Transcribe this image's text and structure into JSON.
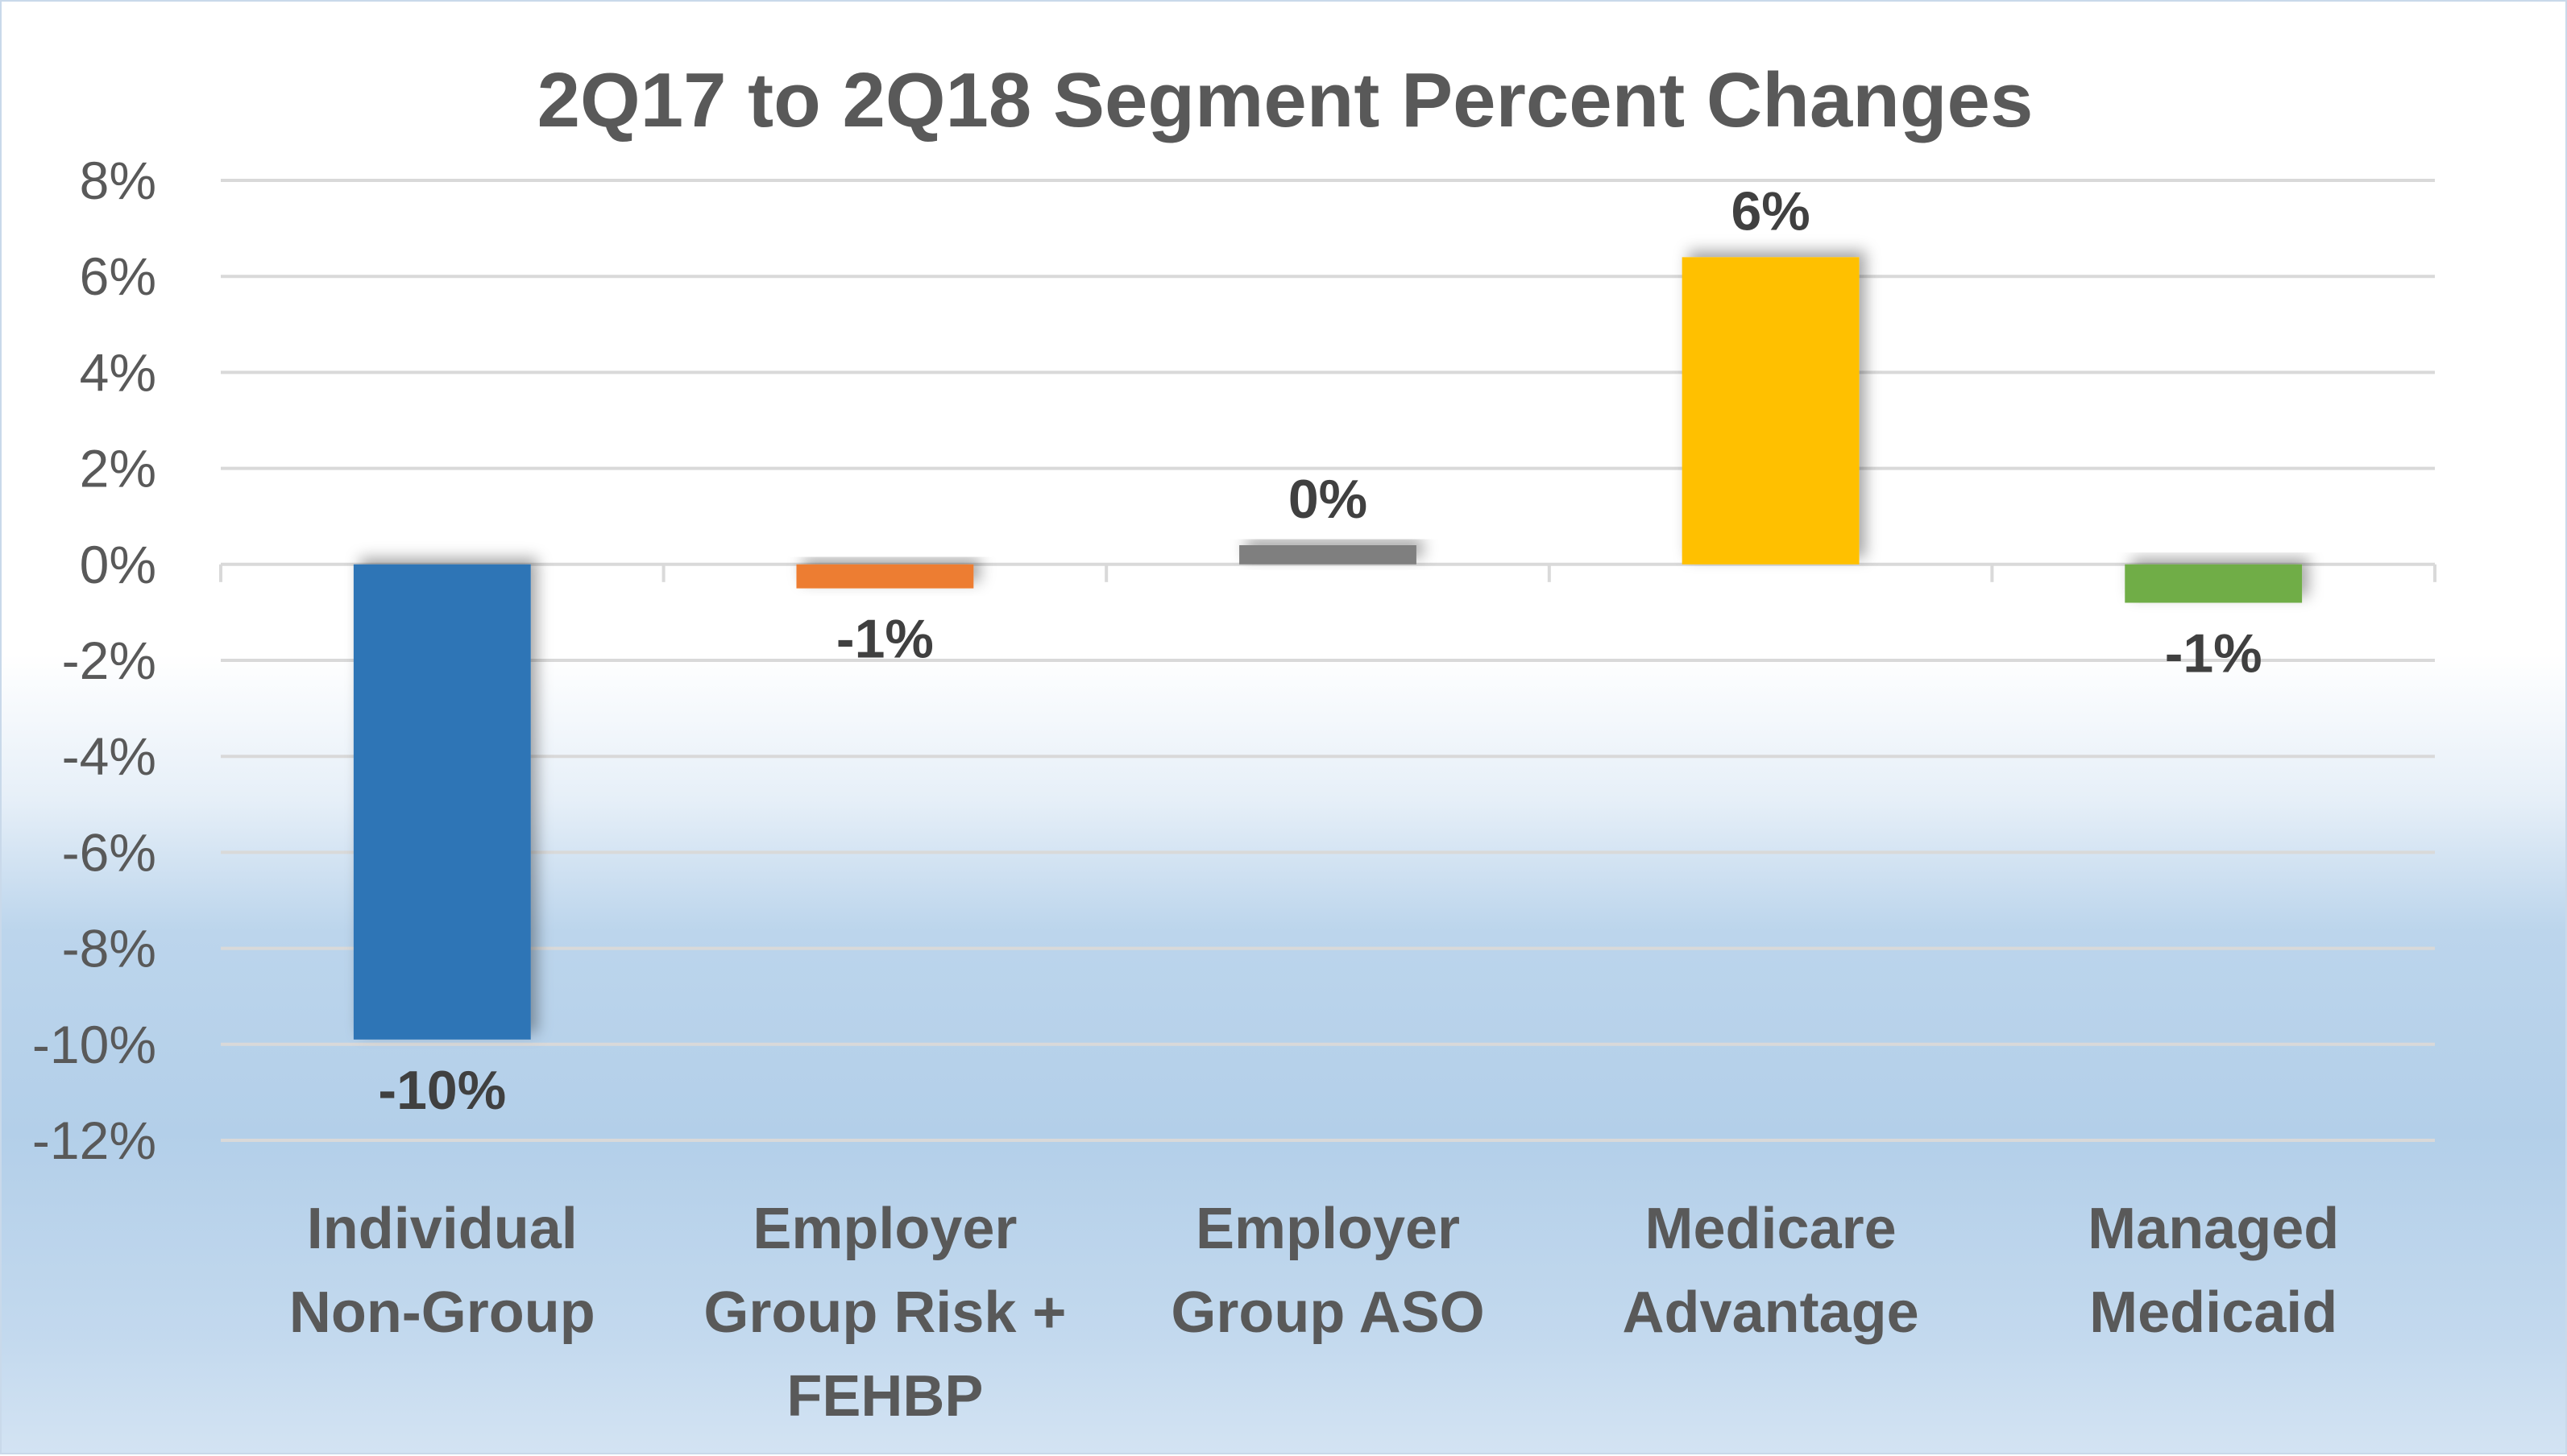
{
  "chart_data": {
    "type": "bar",
    "title": "2Q17 to 2Q18 Segment Percent Changes",
    "xlabel": "",
    "ylabel": "",
    "ylim": [
      -12,
      8
    ],
    "ytick_step": 2,
    "ytick_labels": [
      "8%",
      "6%",
      "4%",
      "2%",
      "0%",
      "-2%",
      "-4%",
      "-6%",
      "-8%",
      "-10%",
      "-12%"
    ],
    "categories": [
      [
        "Individual",
        "Non-Group"
      ],
      [
        "Employer",
        "Group Risk +",
        "FEHBP"
      ],
      [
        "Employer",
        "Group ASO"
      ],
      [
        "Medicare",
        "Advantage"
      ],
      [
        "Managed",
        "Medicaid"
      ]
    ],
    "values": [
      -9.9,
      -0.5,
      0.4,
      6.4,
      -0.8
    ],
    "data_labels": [
      "-10%",
      "-1%",
      "0%",
      "6%",
      "-1%"
    ],
    "colors": [
      "#2e75b6",
      "#ed7d31",
      "#7f7f7f",
      "#ffc000",
      "#70ad47"
    ],
    "grid": true,
    "legend": "none"
  }
}
